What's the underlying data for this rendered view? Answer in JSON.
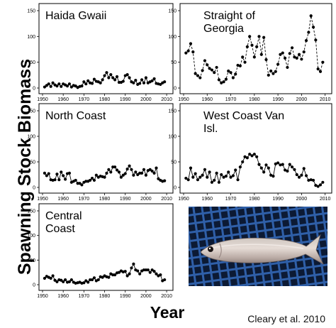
{
  "figure": {
    "ylabel": "Spawning Stock Biomass",
    "xlabel": "Year",
    "credit": "Cleary et al. 2010",
    "photo_subject": "herring-fish"
  },
  "chart_data": [
    {
      "type": "line",
      "title": "Haida Gwaii",
      "x_ticks": [
        1950,
        1960,
        1970,
        1980,
        1990,
        2000,
        2010
      ],
      "y_ticks": [
        0,
        50,
        100,
        150
      ],
      "xlim": [
        1950,
        2011
      ],
      "ylim": [
        0,
        150
      ],
      "x": [
        1951,
        1952,
        1953,
        1954,
        1955,
        1956,
        1957,
        1958,
        1959,
        1960,
        1961,
        1962,
        1963,
        1964,
        1965,
        1966,
        1967,
        1968,
        1969,
        1970,
        1971,
        1972,
        1973,
        1974,
        1975,
        1976,
        1977,
        1978,
        1979,
        1980,
        1981,
        1982,
        1983,
        1984,
        1985,
        1986,
        1987,
        1988,
        1989,
        1990,
        1991,
        1992,
        1993,
        1994,
        1995,
        1996,
        1997,
        1998,
        1999,
        2000,
        2001,
        2002,
        2003,
        2004,
        2005,
        2006,
        2007,
        2008,
        2009
      ],
      "values": [
        2,
        5,
        8,
        3,
        10,
        6,
        4,
        8,
        3,
        8,
        6,
        4,
        8,
        2,
        5,
        4,
        1,
        3,
        4,
        12,
        8,
        14,
        10,
        9,
        17,
        13,
        12,
        10,
        16,
        24,
        30,
        20,
        26,
        20,
        16,
        22,
        11,
        11,
        13,
        24,
        26,
        20,
        12,
        10,
        15,
        7,
        9,
        16,
        10,
        20,
        10,
        12,
        14,
        18,
        9,
        8,
        7,
        10,
        12
      ],
      "dashed": false
    },
    {
      "type": "line",
      "title": "Straight of Georgia",
      "x_ticks": [
        1950,
        1960,
        1970,
        1980,
        1990,
        2000,
        2010
      ],
      "y_ticks": [
        0,
        50,
        100,
        150
      ],
      "xlim": [
        1950,
        2011
      ],
      "ylim": [
        0,
        150
      ],
      "x": [
        1951,
        1952,
        1953,
        1954,
        1955,
        1956,
        1957,
        1958,
        1959,
        1960,
        1961,
        1962,
        1963,
        1964,
        1965,
        1966,
        1967,
        1968,
        1969,
        1970,
        1971,
        1972,
        1973,
        1974,
        1975,
        1976,
        1977,
        1978,
        1979,
        1980,
        1981,
        1982,
        1983,
        1984,
        1985,
        1986,
        1987,
        1988,
        1989,
        1990,
        1991,
        1992,
        1993,
        1994,
        1995,
        1996,
        1997,
        1998,
        1999,
        2000,
        2001,
        2002,
        2003,
        2004,
        2005,
        2006,
        2007,
        2008,
        2009
      ],
      "values": [
        68,
        72,
        86,
        70,
        28,
        24,
        20,
        34,
        53,
        45,
        38,
        35,
        30,
        40,
        16,
        10,
        12,
        17,
        33,
        30,
        20,
        27,
        44,
        43,
        60,
        50,
        80,
        100,
        83,
        60,
        80,
        100,
        65,
        98,
        55,
        25,
        33,
        28,
        32,
        46,
        65,
        68,
        58,
        40,
        67,
        78,
        60,
        58,
        65,
        56,
        70,
        92,
        108,
        140,
        118,
        93,
        37,
        32,
        50
      ],
      "dashed": true
    },
    {
      "type": "line",
      "title": "North Coast",
      "x_ticks": [
        1950,
        1960,
        1970,
        1980,
        1990,
        2000,
        2010
      ],
      "y_ticks": [
        0,
        50,
        100,
        150
      ],
      "xlim": [
        1950,
        2011
      ],
      "ylim": [
        0,
        150
      ],
      "x": [
        1951,
        1952,
        1953,
        1954,
        1955,
        1956,
        1957,
        1958,
        1959,
        1960,
        1961,
        1962,
        1963,
        1964,
        1965,
        1966,
        1967,
        1968,
        1969,
        1970,
        1971,
        1972,
        1973,
        1974,
        1975,
        1976,
        1977,
        1978,
        1979,
        1980,
        1981,
        1982,
        1983,
        1984,
        1985,
        1986,
        1987,
        1988,
        1989,
        1990,
        1991,
        1992,
        1993,
        1994,
        1995,
        1996,
        1997,
        1998,
        1999,
        2000,
        2001,
        2002,
        2003,
        2004,
        2005,
        2006,
        2007,
        2008,
        2009
      ],
      "values": [
        28,
        23,
        27,
        15,
        14,
        15,
        26,
        15,
        30,
        23,
        16,
        27,
        28,
        10,
        12,
        14,
        8,
        8,
        5,
        10,
        12,
        12,
        14,
        18,
        14,
        24,
        20,
        22,
        21,
        20,
        28,
        35,
        30,
        40,
        40,
        34,
        30,
        20,
        24,
        27,
        36,
        42,
        35,
        24,
        30,
        25,
        28,
        28,
        35,
        24,
        33,
        35,
        32,
        28,
        38,
        17,
        14,
        12,
        13
      ],
      "dashed": false
    },
    {
      "type": "line",
      "title": "West Coast Van Isl.",
      "x_ticks": [
        1950,
        1960,
        1970,
        1980,
        1990,
        2000,
        2010
      ],
      "y_ticks": [
        0,
        50,
        100,
        150
      ],
      "xlim": [
        1950,
        2011
      ],
      "ylim": [
        0,
        150
      ],
      "x": [
        1951,
        1952,
        1953,
        1954,
        1955,
        1956,
        1957,
        1958,
        1959,
        1960,
        1961,
        1962,
        1963,
        1964,
        1965,
        1966,
        1967,
        1968,
        1969,
        1970,
        1971,
        1972,
        1973,
        1974,
        1975,
        1976,
        1977,
        1978,
        1979,
        1980,
        1981,
        1982,
        1983,
        1984,
        1985,
        1986,
        1987,
        1988,
        1989,
        1990,
        1991,
        1992,
        1993,
        1994,
        1995,
        1996,
        1997,
        1998,
        1999,
        2000,
        2001,
        2002,
        2003,
        2004,
        2005,
        2006,
        2007,
        2008,
        2009
      ],
      "values": [
        18,
        15,
        38,
        20,
        27,
        15,
        20,
        24,
        35,
        20,
        30,
        10,
        14,
        28,
        10,
        25,
        20,
        22,
        30,
        20,
        23,
        34,
        15,
        40,
        50,
        60,
        58,
        65,
        62,
        65,
        60,
        45,
        38,
        30,
        44,
        38,
        24,
        22,
        46,
        48,
        44,
        45,
        34,
        32,
        45,
        40,
        35,
        25,
        20,
        24,
        37,
        23,
        14,
        15,
        14,
        4,
        2,
        5,
        10
      ],
      "dashed": false
    },
    {
      "type": "line",
      "title": "Central Coast",
      "x_ticks": [
        1950,
        1960,
        1970,
        1980,
        1990,
        2000,
        2010
      ],
      "y_ticks": [
        0,
        50,
        100,
        150
      ],
      "xlim": [
        1950,
        2011
      ],
      "ylim": [
        0,
        150
      ],
      "x": [
        1951,
        1952,
        1953,
        1954,
        1955,
        1956,
        1957,
        1958,
        1959,
        1960,
        1961,
        1962,
        1963,
        1964,
        1965,
        1966,
        1967,
        1968,
        1969,
        1970,
        1971,
        1972,
        1973,
        1974,
        1975,
        1976,
        1977,
        1978,
        1979,
        1980,
        1981,
        1982,
        1983,
        1984,
        1985,
        1986,
        1987,
        1988,
        1989,
        1990,
        1991,
        1992,
        1993,
        1994,
        1995,
        1996,
        1997,
        1998,
        1999,
        2000,
        2001,
        2002,
        2003,
        2004,
        2005,
        2006,
        2007,
        2008,
        2009
      ],
      "values": [
        13,
        17,
        15,
        13,
        18,
        9,
        6,
        10,
        9,
        6,
        10,
        5,
        6,
        10,
        5,
        3,
        4,
        5,
        3,
        4,
        8,
        5,
        10,
        10,
        14,
        8,
        10,
        16,
        15,
        18,
        16,
        15,
        22,
        20,
        20,
        24,
        25,
        28,
        26,
        27,
        18,
        22,
        34,
        42,
        30,
        28,
        22,
        28,
        30,
        30,
        30,
        25,
        30,
        27,
        22,
        18,
        20,
        8,
        10
      ],
      "dashed": false
    }
  ]
}
